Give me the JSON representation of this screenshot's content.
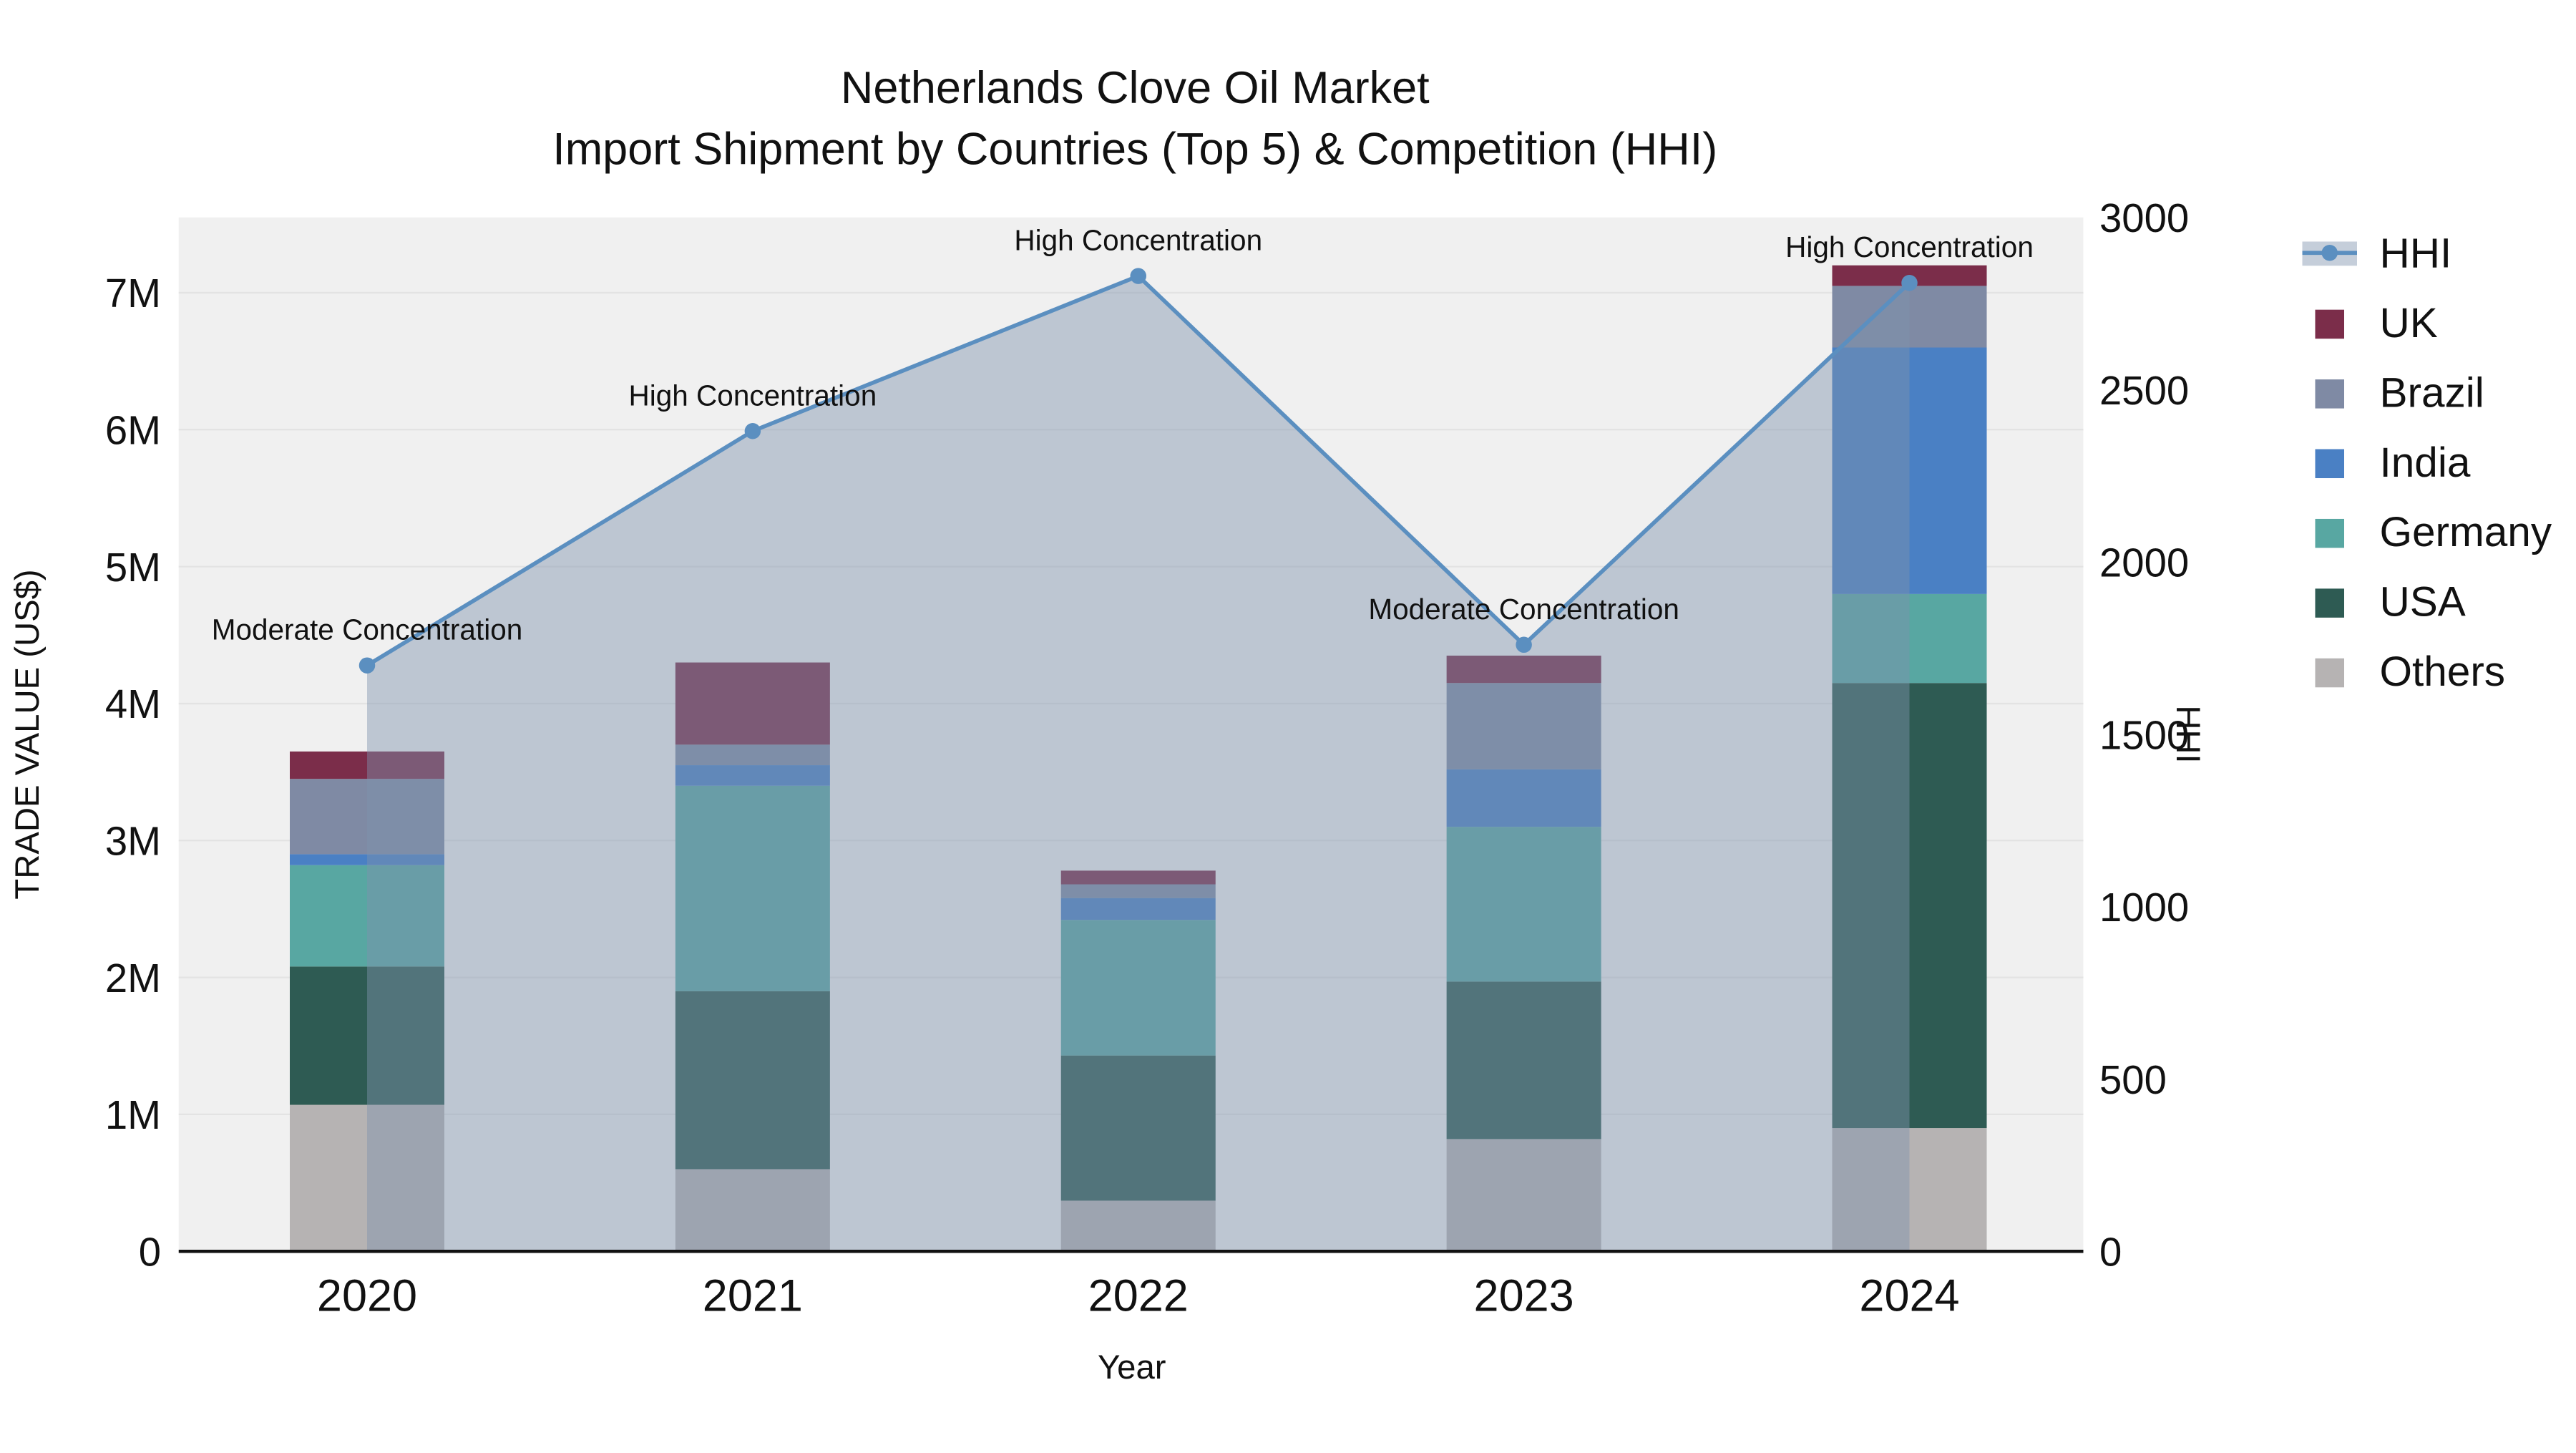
{
  "title": {
    "line1": "Netherlands Clove Oil Market",
    "line2": "Import Shipment by Countries (Top 5) & Competition (HHI)"
  },
  "chart_data": {
    "type": "bar",
    "subtype": "stacked-bar-with-line",
    "x": [
      "2020",
      "2021",
      "2022",
      "2023",
      "2024"
    ],
    "xlabel": "Year",
    "ylabel_left": "TRADE VALUE (US$)",
    "ylabel_right": "HHI",
    "ylim_left": [
      0,
      7550000
    ],
    "ylim_right": [
      0,
      3000
    ],
    "yticks_left": {
      "values": [
        0,
        1000000,
        2000000,
        3000000,
        4000000,
        5000000,
        6000000,
        7000000
      ],
      "labels": [
        "0",
        "1M",
        "2M",
        "3M",
        "4M",
        "5M",
        "6M",
        "7M"
      ]
    },
    "yticks_right": {
      "values": [
        0,
        500,
        1000,
        1500,
        2000,
        2500,
        3000
      ],
      "labels": [
        "0",
        "500",
        "1000",
        "1500",
        "2000",
        "2500",
        "3000"
      ]
    },
    "series": [
      {
        "name": "Others",
        "color": "#b6b3b3",
        "values": [
          1070000,
          600000,
          370000,
          820000,
          900000
        ]
      },
      {
        "name": "USA",
        "color": "#2e5b53",
        "values": [
          1010000,
          1300000,
          1060000,
          1150000,
          3250000
        ]
      },
      {
        "name": "Germany",
        "color": "#58a7a2",
        "values": [
          740000,
          1500000,
          990000,
          1130000,
          650000
        ]
      },
      {
        "name": "India",
        "color": "#4a80c4",
        "values": [
          80000,
          150000,
          160000,
          420000,
          1800000
        ]
      },
      {
        "name": "Brazil",
        "color": "#7f8aa4",
        "values": [
          550000,
          150000,
          100000,
          630000,
          450000
        ]
      },
      {
        "name": "UK",
        "color": "#7b2d4a",
        "values": [
          200000,
          600000,
          100000,
          200000,
          150000
        ]
      }
    ],
    "line": {
      "name": "HHI",
      "color": "#5b8fc0",
      "area_fill": "rgba(126,147,173,0.45)",
      "values": [
        1700,
        2380,
        2830,
        1760,
        2810
      ]
    },
    "annotations": [
      {
        "x": "2020",
        "text": "Moderate Concentration"
      },
      {
        "x": "2021",
        "text": "High Concentration"
      },
      {
        "x": "2022",
        "text": "High Concentration"
      },
      {
        "x": "2023",
        "text": "Moderate Concentration"
      },
      {
        "x": "2024",
        "text": "High Concentration"
      }
    ],
    "legend": [
      {
        "label": "HHI",
        "swatch": "line",
        "color": "#5b8fc0",
        "fill": "rgba(126,147,173,0.45)"
      },
      {
        "label": "UK",
        "swatch": "square",
        "color": "#7b2d4a"
      },
      {
        "label": "Brazil",
        "swatch": "square",
        "color": "#7f8aa4"
      },
      {
        "label": "India",
        "swatch": "square",
        "color": "#4a80c4"
      },
      {
        "label": "Germany",
        "swatch": "square",
        "color": "#58a7a2"
      },
      {
        "label": "USA",
        "swatch": "square",
        "color": "#2e5b53"
      },
      {
        "label": "Others",
        "swatch": "square",
        "color": "#b6b3b3"
      }
    ],
    "plot_bg": "#f0f0f0",
    "grid_color": "#e3e3e3"
  }
}
